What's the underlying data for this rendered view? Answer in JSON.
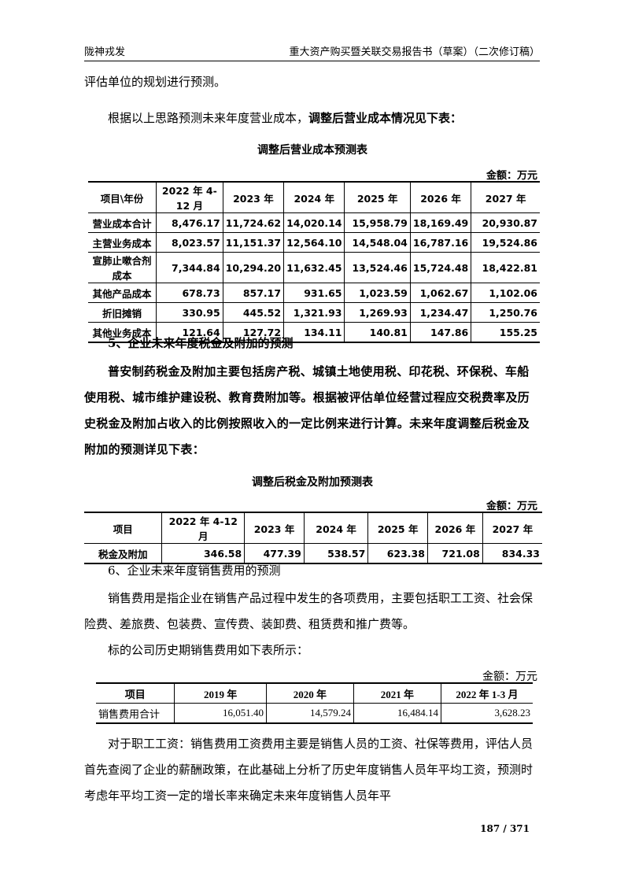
{
  "header": {
    "left": "陇神戎发",
    "right": "重大资产购买暨关联交易报告书（草案）（二次修订稿）"
  },
  "para1": "评估单位的规划进行预测。",
  "para2_normal": "根据以上思路预测未来年度营业成本，",
  "para2_bold": "调整后营业成本情况见下表：",
  "table1": {
    "title": "调整后营业成本预测表",
    "unit": "金额：万元",
    "headers": [
      "项目\\年份",
      "2022 年 4-12 月",
      "2023 年",
      "2024 年",
      "2025 年",
      "2026 年",
      "2027 年"
    ],
    "rows": [
      [
        "营业成本合计",
        "8,476.17",
        "11,724.62",
        "14,020.14",
        "15,958.79",
        "18,169.49",
        "20,930.87"
      ],
      [
        "主营业务成本",
        "8,023.57",
        "11,151.37",
        "12,564.10",
        "14,548.04",
        "16,787.16",
        "19,524.86"
      ],
      [
        "宣肺止嗽合剂成本",
        "7,344.84",
        "10,294.20",
        "11,632.45",
        "13,524.46",
        "15,724.48",
        "18,422.81"
      ],
      [
        "其他产品成本",
        "678.73",
        "857.17",
        "931.65",
        "1,023.59",
        "1,062.67",
        "1,102.06"
      ],
      [
        "折旧摊销",
        "330.95",
        "445.52",
        "1,321.93",
        "1,269.93",
        "1,234.47",
        "1,250.76"
      ],
      [
        "其他业务成本",
        "121.64",
        "127.72",
        "134.11",
        "140.81",
        "147.86",
        "155.25"
      ]
    ]
  },
  "heading5": "5、企业未来年度税金及附加的预测",
  "para5": "普安制药税金及附加主要包括房产税、城镇土地使用税、印花税、环保税、车船使用税、城市维护建设税、教育费附加等。根据被评估单位经营过程应交税费率及历史税金及附加占收入的比例按照收入的一定比例来进行计算。未来年度调整后税金及附加的预测详见下表：",
  "table2": {
    "title": "调整后税金及附加预测表",
    "unit": "金额：万元",
    "headers": [
      "项目",
      "2022 年 4-12 月",
      "2023 年",
      "2024 年",
      "2025 年",
      "2026 年",
      "2027 年"
    ],
    "rows": [
      [
        "税金及附加",
        "346.58",
        "477.39",
        "538.57",
        "623.38",
        "721.08",
        "834.33"
      ]
    ]
  },
  "heading6": "6、企业未来年度销售费用的预测",
  "para6": "销售费用是指企业在销售产品过程中发生的各项费用，主要包括职工工资、社会保险费、差旅费、包装费、宣传费、装卸费、租赁费和推广费等。",
  "para7": "标的公司历史期销售费用如下表所示：",
  "table3": {
    "unit": "金额：万元",
    "headers": [
      "项目",
      "2019 年",
      "2020 年",
      "2021 年",
      "2022 年 1-3 月"
    ],
    "rows": [
      [
        "销售费用合计",
        "16,051.40",
        "14,579.24",
        "16,484.14",
        "3,628.23"
      ]
    ]
  },
  "para8": "对于职工工资：销售费用工资费用主要是销售人员的工资、社保等费用，评估人员首先查阅了企业的薪酬政策，在此基础上分析了历史年度销售人员年平均工资，预测时考虑年平均工资一定的增长率来确定未来年度销售人员年平",
  "page_number": "187 / 371"
}
